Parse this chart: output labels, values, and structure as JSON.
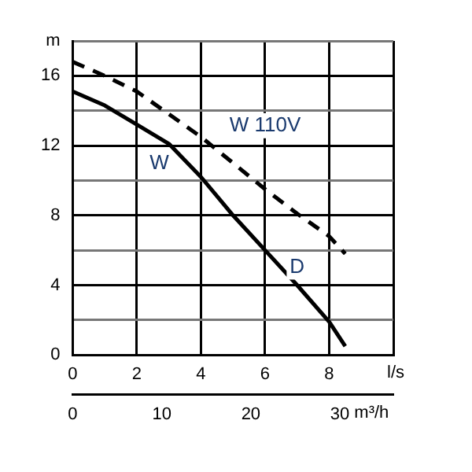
{
  "chart_data": {
    "type": "line",
    "xlabel": "l/s",
    "ylabel": "m",
    "x2label": "m³/h",
    "xlim": [
      0,
      10
    ],
    "xticks": [
      0,
      2,
      4,
      6,
      8,
      {
        "value": 10,
        "label": null
      }
    ],
    "ylim": [
      0,
      18
    ],
    "yticks": [
      0,
      {
        "value": 2,
        "label": null
      },
      4,
      {
        "value": 6,
        "label": null
      },
      8,
      {
        "value": 10,
        "label": null
      },
      12,
      {
        "value": 14,
        "label": null
      },
      16,
      {
        "value": 18,
        "label": null
      }
    ],
    "x2lim": [
      0,
      36
    ],
    "x2ticks": [
      0,
      10,
      20,
      30
    ],
    "grid": true,
    "legend": false,
    "marker": "none",
    "series": [
      {
        "color": "#000000",
        "line_style": "solid",
        "x": [
          0,
          1,
          2,
          3,
          4,
          5,
          6,
          7,
          8,
          8.5
        ],
        "values": [
          15.1,
          14.3,
          13.2,
          12.1,
          10.2,
          8.0,
          6.0,
          4.0,
          1.9,
          0.5
        ]
      },
      {
        "color": "#000000",
        "line_style": "dashed",
        "x": [
          0,
          1,
          2,
          3,
          4,
          5,
          6,
          7,
          8,
          8.5
        ],
        "values": [
          16.8,
          16.0,
          15.1,
          13.8,
          12.5,
          11.0,
          9.5,
          8.1,
          6.8,
          5.8
        ]
      }
    ],
    "annotations": [
      "W 110V",
      "W",
      "D"
    ]
  }
}
